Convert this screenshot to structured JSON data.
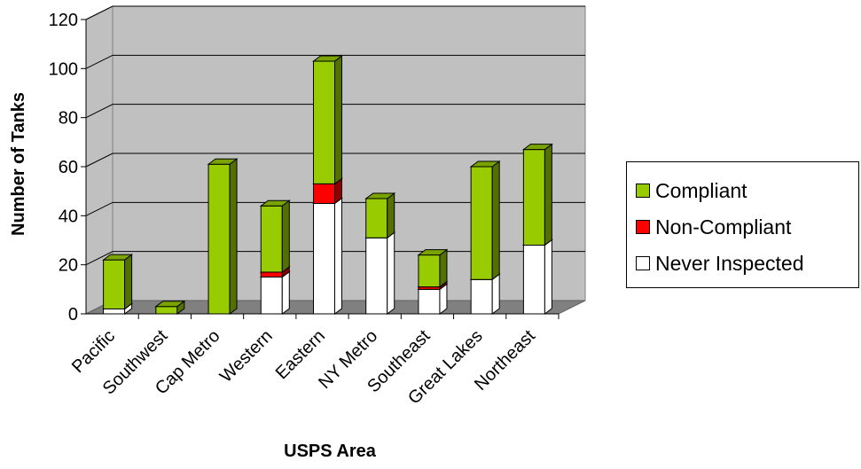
{
  "chart_data": {
    "type": "bar",
    "stacked": true,
    "style": "3d",
    "title": "",
    "xlabel": "USPS Area",
    "ylabel": "Number of Tanks",
    "ylim": [
      0,
      120
    ],
    "yticks": [
      0,
      20,
      40,
      60,
      80,
      100,
      120
    ],
    "grid": true,
    "legend_position": "right",
    "categories": [
      "Pacific",
      "Southwest",
      "Cap Metro",
      "Western",
      "Eastern",
      "NY Metro",
      "Southeast",
      "Great Lakes",
      "Northeast"
    ],
    "series": [
      {
        "name": "Never Inspected",
        "color": "#ffffff",
        "values": [
          2,
          0,
          0,
          15,
          45,
          31,
          10,
          14,
          28
        ]
      },
      {
        "name": "Non-Compliant",
        "color": "#ff0000",
        "values": [
          0,
          0,
          0,
          2,
          8,
          0,
          1,
          0,
          0
        ]
      },
      {
        "name": "Compliant",
        "color": "#99cc00",
        "values": [
          20,
          3,
          61,
          27,
          50,
          16,
          13,
          46,
          39
        ]
      }
    ],
    "legend": [
      "Compliant",
      "Non-Compliant",
      "Never Inspected"
    ]
  }
}
